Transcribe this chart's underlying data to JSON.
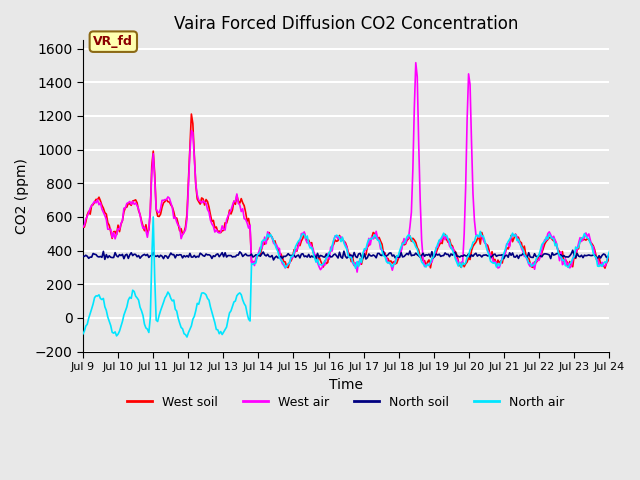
{
  "title": "Vaira Forced Diffusion CO2 Concentration",
  "xlabel": "Time",
  "ylabel": "CO2 (ppm)",
  "ylim": [
    -200,
    1650
  ],
  "yticks": [
    -200,
    0,
    200,
    400,
    600,
    800,
    1000,
    1200,
    1400,
    1600
  ],
  "plot_bg": "#e8e8e8",
  "colors": {
    "west_soil": "#ff0000",
    "west_air": "#ff00ff",
    "north_soil": "#000080",
    "north_air": "#00e5ff"
  },
  "label_box": {
    "text": "VR_fd",
    "facecolor": "#ffffb0",
    "edgecolor": "#8b6914",
    "textcolor": "#8b0000"
  },
  "legend_labels": [
    "West soil",
    "West air",
    "North soil",
    "North air"
  ]
}
